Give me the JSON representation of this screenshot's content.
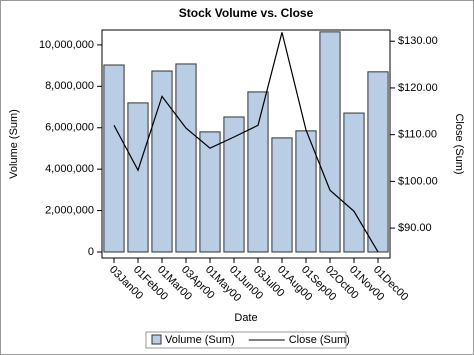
{
  "chart_data": {
    "type": "bar",
    "title": "Stock Volume vs. Close",
    "x_label": "Date",
    "y_label": "Volume (Sum)",
    "y2_label": "Close (Sum)",
    "categories": [
      "03Jan00",
      "01Feb00",
      "01Mar00",
      "03Apr00",
      "01May00",
      "01Jun00",
      "03Jul00",
      "01Aug00",
      "01Sep00",
      "02Oct00",
      "01Nov00",
      "01Dec00"
    ],
    "series": [
      {
        "name": "Volume (Sum)",
        "type": "bar",
        "color": "#b9cde5",
        "values": [
          9030000,
          7200000,
          8740000,
          9080000,
          5800000,
          6520000,
          7730000,
          5510000,
          5850000,
          10630000,
          6710000,
          8700000
        ]
      },
      {
        "name": "Close (Sum)",
        "type": "line",
        "axis": "y2",
        "color": "#000000",
        "values": [
          112.0,
          102.4,
          118.2,
          111.4,
          107.1,
          109.5,
          112.0,
          131.9,
          111.0,
          98.1,
          93.6,
          84.9
        ]
      }
    ],
    "ylim": [
      -290000,
      10720000
    ],
    "yticks": [
      0,
      {
        "value": 2000000,
        "label": "2,000,000"
      },
      {
        "value": 4000000,
        "label": "4,000,000"
      },
      {
        "value": 6000000,
        "label": "6,000,000"
      },
      {
        "value": 8000000,
        "label": "8,000,000"
      },
      {
        "value": 10000000,
        "label": "10,000,000"
      }
    ],
    "y2lim": [
      83.6,
      132.4
    ],
    "y2ticks": [
      {
        "value": 90,
        "label": "$90.00"
      },
      {
        "value": 100,
        "label": "$100.00"
      },
      {
        "value": 110,
        "label": "$110.00"
      },
      {
        "value": 120,
        "label": "$120.00"
      },
      {
        "value": 130,
        "label": "$130.00"
      }
    ],
    "legend": "bottom"
  }
}
